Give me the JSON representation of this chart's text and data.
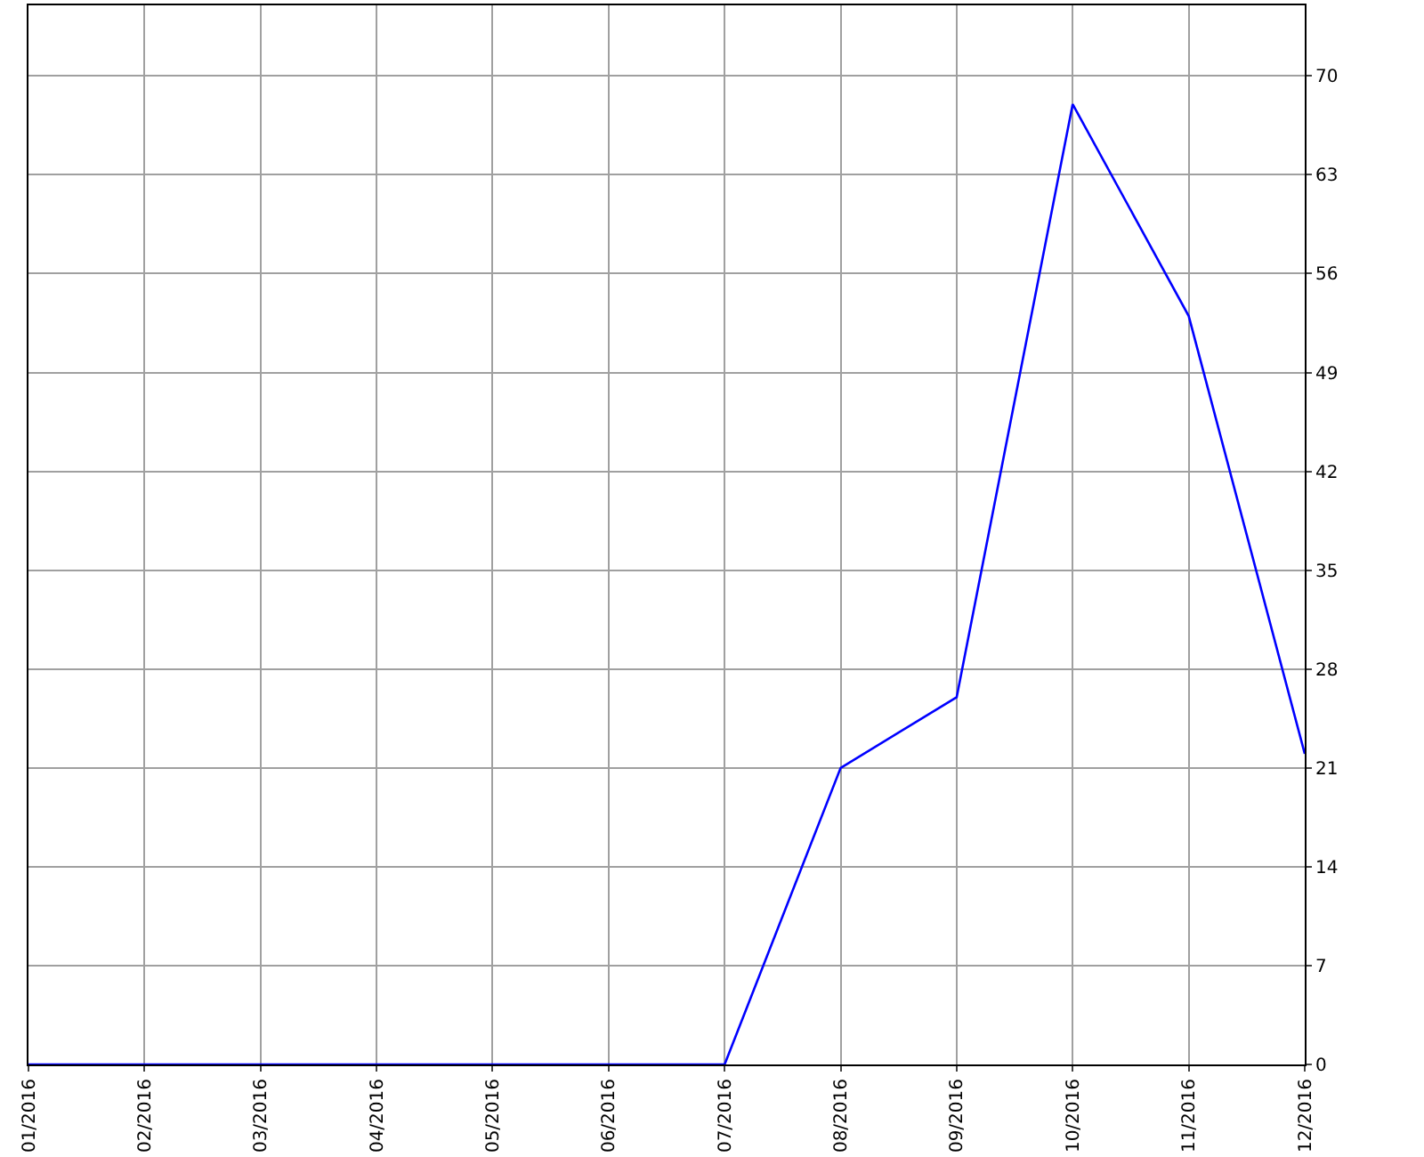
{
  "chart_data": {
    "type": "line",
    "categories": [
      "01/2016",
      "02/2016",
      "03/2016",
      "04/2016",
      "05/2016",
      "06/2016",
      "07/2016",
      "08/2016",
      "09/2016",
      "10/2016",
      "11/2016",
      "12/2016"
    ],
    "series": [
      {
        "color": "#0000ff",
        "values": [
          0,
          0,
          0,
          0,
          0,
          0,
          0,
          21,
          26,
          68,
          53,
          22
        ]
      }
    ],
    "ylim": [
      0,
      75
    ],
    "yticks": [
      0,
      7,
      14,
      21,
      28,
      35,
      42,
      49,
      56,
      63,
      70
    ],
    "grid": true,
    "marker": "none",
    "line_style": "solid"
  }
}
